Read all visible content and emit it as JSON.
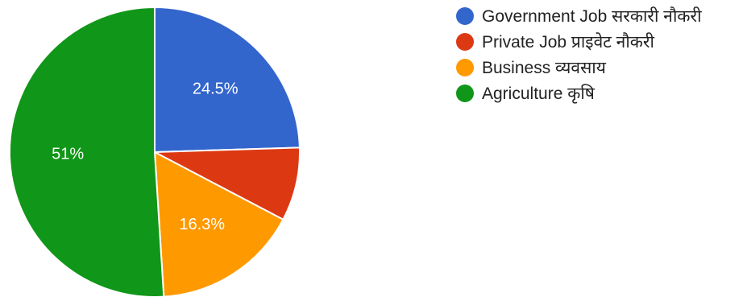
{
  "chart_data": {
    "type": "pie",
    "title": "",
    "legend_position": "right",
    "series": [
      {
        "name": "Government Job सरकारी नौकरी",
        "value": 24.5,
        "label": "24.5%",
        "color": "#3366cc"
      },
      {
        "name": "Private Job प्राइवेट नौकरी",
        "value": 8.2,
        "label": "",
        "color": "#dc3912"
      },
      {
        "name": "Business व्यवसाय",
        "value": 16.3,
        "label": "16.3%",
        "color": "#ff9900"
      },
      {
        "name": "Agriculture कृषि",
        "value": 51,
        "label": "51%",
        "color": "#109618"
      }
    ]
  }
}
